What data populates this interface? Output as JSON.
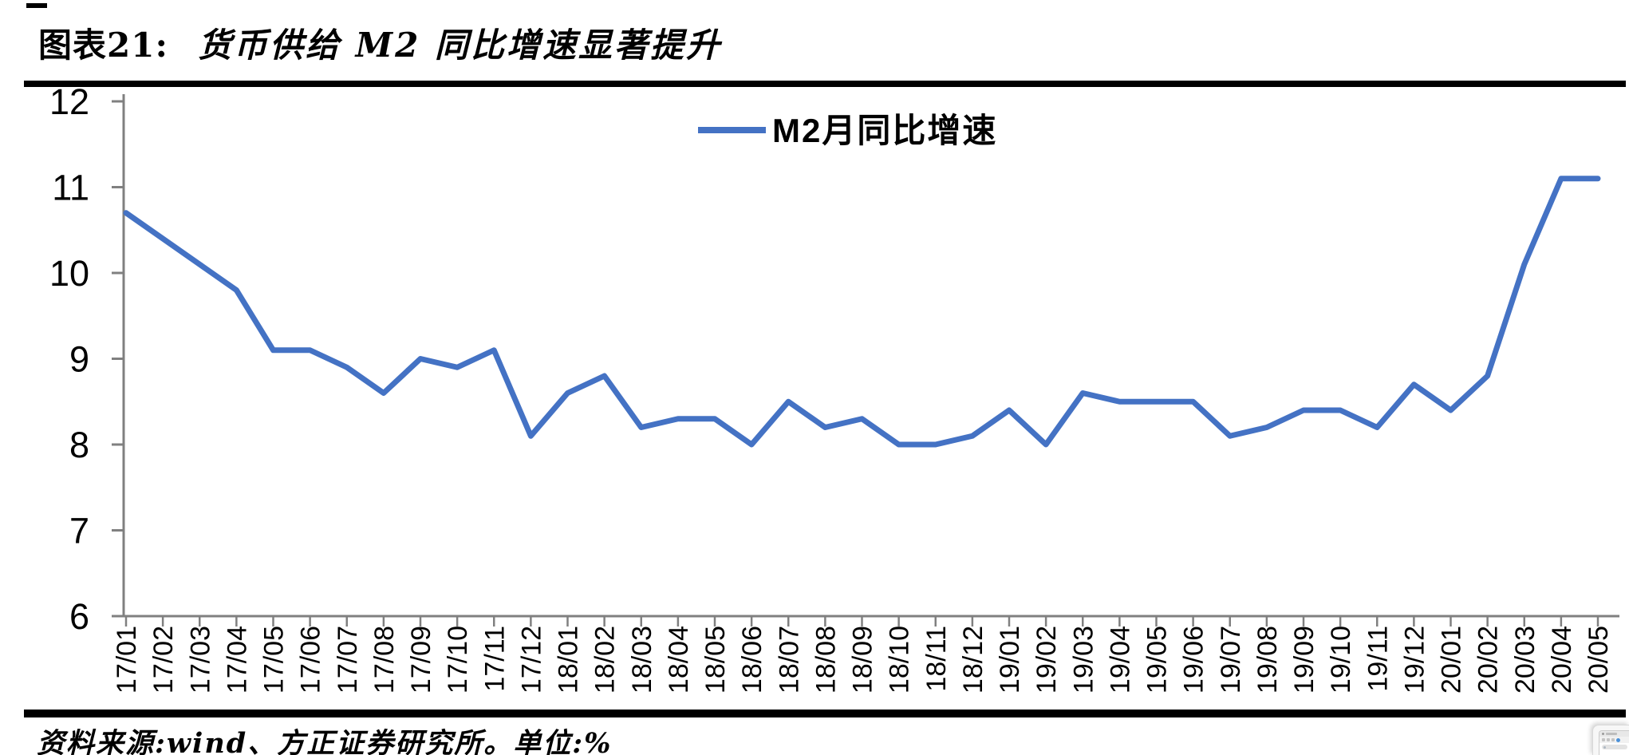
{
  "header": {
    "figure_label": "图表21:",
    "title": "货币供给 M2 同比增速显著提升"
  },
  "footer": {
    "source_note": "资料来源:wind、方正证券研究所。单位:%"
  },
  "chart_data": {
    "type": "line",
    "title": "货币供给 M2 同比增速显著提升",
    "legend": [
      "M2月同比增速"
    ],
    "legend_position": "top-center",
    "grid": false,
    "unit": "%",
    "ylim": [
      6,
      12
    ],
    "yticks": [
      12,
      11,
      10,
      9,
      8,
      7,
      6
    ],
    "axis_color": "#808080",
    "x": [
      "17/01",
      "17/02",
      "17/03",
      "17/04",
      "17/05",
      "17/06",
      "17/07",
      "17/08",
      "17/09",
      "17/10",
      "17/11",
      "17/12",
      "18/01",
      "18/02",
      "18/03",
      "18/04",
      "18/05",
      "18/06",
      "18/07",
      "18/08",
      "18/09",
      "18/10",
      "18/11",
      "18/12",
      "19/01",
      "19/02",
      "19/03",
      "19/04",
      "19/05",
      "19/06",
      "19/07",
      "19/08",
      "19/09",
      "19/10",
      "19/11",
      "19/12",
      "20/01",
      "20/02",
      "20/03",
      "20/04",
      "20/05"
    ],
    "series": [
      {
        "name": "M2月同比增速",
        "color": "#4472C4",
        "values": [
          10.7,
          10.4,
          10.1,
          9.8,
          9.1,
          9.1,
          8.9,
          8.6,
          9.0,
          8.9,
          9.1,
          8.1,
          8.6,
          8.8,
          8.2,
          8.3,
          8.3,
          8.0,
          8.5,
          8.2,
          8.3,
          8.0,
          8.0,
          8.1,
          8.4,
          8.0,
          8.6,
          8.5,
          8.5,
          8.5,
          8.1,
          8.2,
          8.4,
          8.4,
          8.2,
          8.7,
          8.4,
          8.8,
          10.1,
          11.1,
          11.1
        ]
      }
    ]
  }
}
